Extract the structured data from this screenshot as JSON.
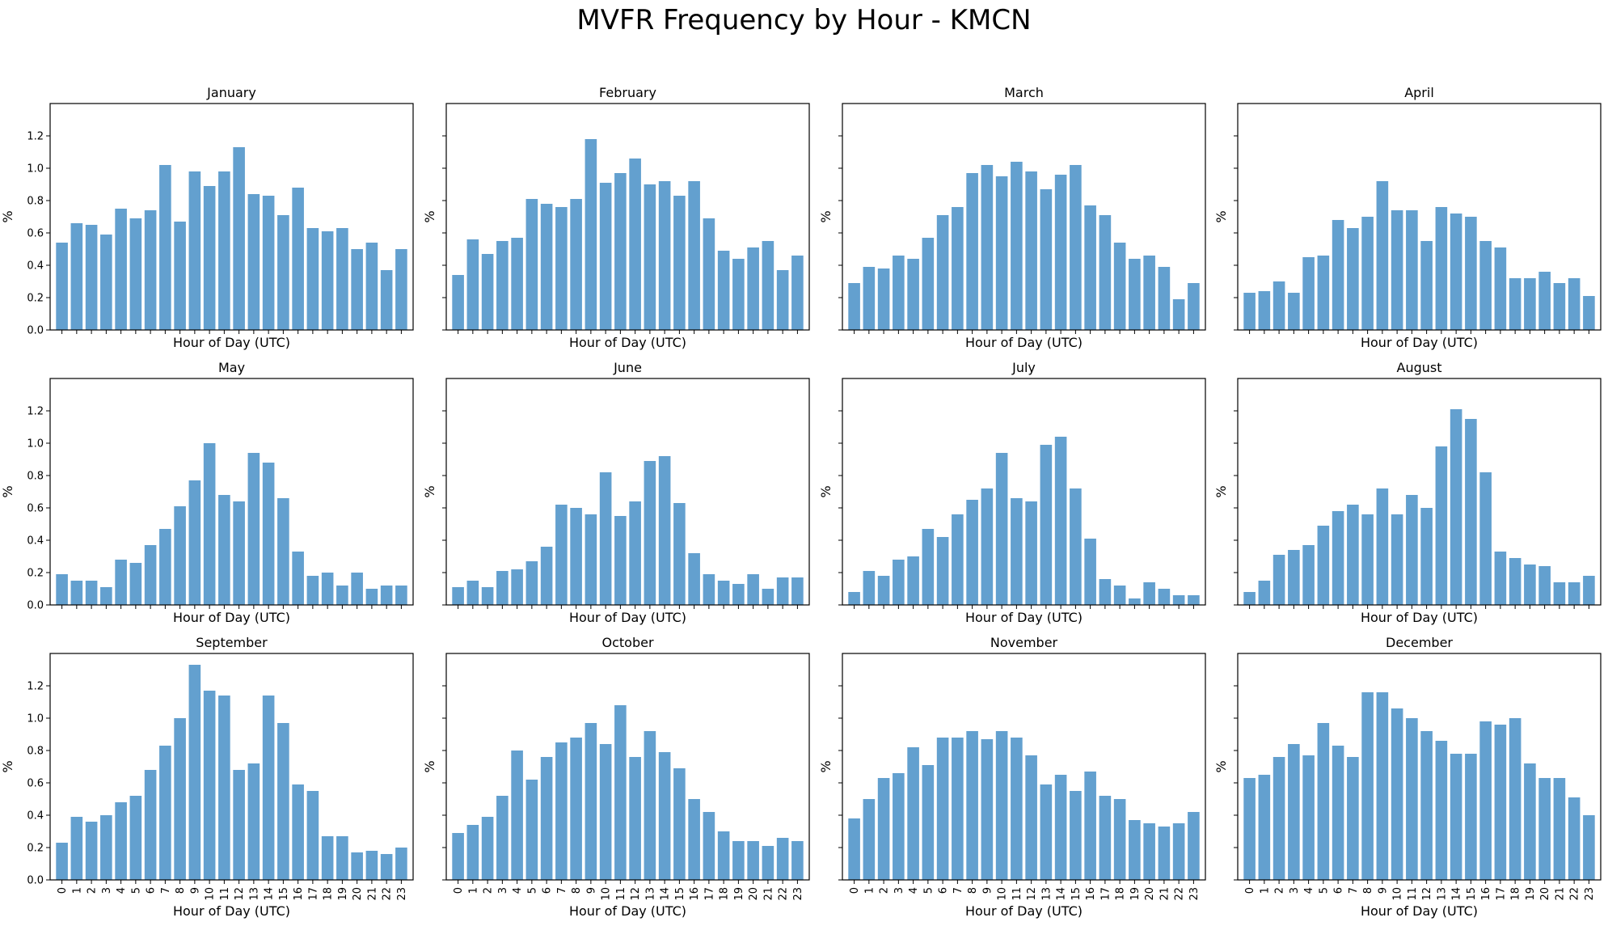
{
  "title": "MVFR Frequency by Hour - KMCN",
  "chart_data": {
    "type": "bar",
    "title": "MVFR Frequency by Hour - KMCN",
    "xlabel": "Hour of Day (UTC)",
    "ylabel": "%",
    "ylim": [
      0,
      1.4
    ],
    "yticks": [
      "0.0",
      "0.2",
      "0.4",
      "0.6",
      "0.8",
      "1.0",
      "1.2"
    ],
    "categories": [
      "0",
      "1",
      "2",
      "3",
      "4",
      "5",
      "6",
      "7",
      "8",
      "9",
      "10",
      "11",
      "12",
      "13",
      "14",
      "15",
      "16",
      "17",
      "18",
      "19",
      "20",
      "21",
      "22",
      "23"
    ],
    "grid": false,
    "color": "#5b9bcc",
    "panels": [
      {
        "title": "January",
        "values": [
          0.54,
          0.66,
          0.65,
          0.59,
          0.75,
          0.69,
          0.74,
          1.02,
          0.67,
          0.98,
          0.89,
          0.98,
          1.13,
          0.84,
          0.83,
          0.71,
          0.88,
          0.63,
          0.61,
          0.63,
          0.5,
          0.54,
          0.37,
          0.5
        ]
      },
      {
        "title": "February",
        "values": [
          0.34,
          0.56,
          0.47,
          0.55,
          0.57,
          0.81,
          0.78,
          0.76,
          0.81,
          1.18,
          0.91,
          0.97,
          1.06,
          0.9,
          0.92,
          0.83,
          0.92,
          0.69,
          0.49,
          0.44,
          0.51,
          0.55,
          0.37,
          0.46
        ]
      },
      {
        "title": "March",
        "values": [
          0.29,
          0.39,
          0.38,
          0.46,
          0.44,
          0.57,
          0.71,
          0.76,
          0.97,
          1.02,
          0.95,
          1.04,
          0.98,
          0.87,
          0.96,
          1.02,
          0.77,
          0.71,
          0.54,
          0.44,
          0.46,
          0.39,
          0.19,
          0.29
        ]
      },
      {
        "title": "April",
        "values": [
          0.23,
          0.24,
          0.3,
          0.23,
          0.45,
          0.46,
          0.68,
          0.63,
          0.7,
          0.92,
          0.74,
          0.74,
          0.55,
          0.76,
          0.72,
          0.7,
          0.55,
          0.51,
          0.32,
          0.32,
          0.36,
          0.29,
          0.32,
          0.21
        ]
      },
      {
        "title": "May",
        "values": [
          0.19,
          0.15,
          0.15,
          0.11,
          0.28,
          0.26,
          0.37,
          0.47,
          0.61,
          0.77,
          1.0,
          0.68,
          0.64,
          0.94,
          0.88,
          0.66,
          0.33,
          0.18,
          0.2,
          0.12,
          0.2,
          0.1,
          0.12,
          0.12
        ]
      },
      {
        "title": "June",
        "values": [
          0.11,
          0.15,
          0.11,
          0.21,
          0.22,
          0.27,
          0.36,
          0.62,
          0.6,
          0.56,
          0.82,
          0.55,
          0.64,
          0.89,
          0.92,
          0.63,
          0.32,
          0.19,
          0.15,
          0.13,
          0.19,
          0.1,
          0.17,
          0.17
        ]
      },
      {
        "title": "July",
        "values": [
          0.08,
          0.21,
          0.18,
          0.28,
          0.3,
          0.47,
          0.42,
          0.56,
          0.65,
          0.72,
          0.94,
          0.66,
          0.64,
          0.99,
          1.04,
          0.72,
          0.41,
          0.16,
          0.12,
          0.04,
          0.14,
          0.1,
          0.06,
          0.06
        ]
      },
      {
        "title": "August",
        "values": [
          0.08,
          0.15,
          0.31,
          0.34,
          0.37,
          0.49,
          0.58,
          0.62,
          0.56,
          0.72,
          0.56,
          0.68,
          0.6,
          0.98,
          1.21,
          1.15,
          0.82,
          0.33,
          0.29,
          0.25,
          0.24,
          0.14,
          0.14,
          0.18
        ]
      },
      {
        "title": "September",
        "values": [
          0.23,
          0.39,
          0.36,
          0.4,
          0.48,
          0.52,
          0.68,
          0.83,
          1.0,
          1.33,
          1.17,
          1.14,
          0.68,
          0.72,
          1.14,
          0.97,
          0.59,
          0.55,
          0.27,
          0.27,
          0.17,
          0.18,
          0.16,
          0.2
        ]
      },
      {
        "title": "October",
        "values": [
          0.29,
          0.34,
          0.39,
          0.52,
          0.8,
          0.62,
          0.76,
          0.85,
          0.88,
          0.97,
          0.84,
          1.08,
          0.76,
          0.92,
          0.79,
          0.69,
          0.5,
          0.42,
          0.3,
          0.24,
          0.24,
          0.21,
          0.26,
          0.24
        ]
      },
      {
        "title": "November",
        "values": [
          0.38,
          0.5,
          0.63,
          0.66,
          0.82,
          0.71,
          0.88,
          0.88,
          0.92,
          0.87,
          0.92,
          0.88,
          0.77,
          0.59,
          0.65,
          0.55,
          0.67,
          0.52,
          0.5,
          0.37,
          0.35,
          0.33,
          0.35,
          0.42
        ]
      },
      {
        "title": "December",
        "values": [
          0.63,
          0.65,
          0.76,
          0.84,
          0.77,
          0.97,
          0.83,
          0.76,
          1.16,
          1.16,
          1.06,
          1.0,
          0.92,
          0.86,
          0.78,
          0.78,
          0.98,
          0.96,
          1.0,
          0.72,
          0.63,
          0.63,
          0.51,
          0.4
        ]
      }
    ]
  }
}
